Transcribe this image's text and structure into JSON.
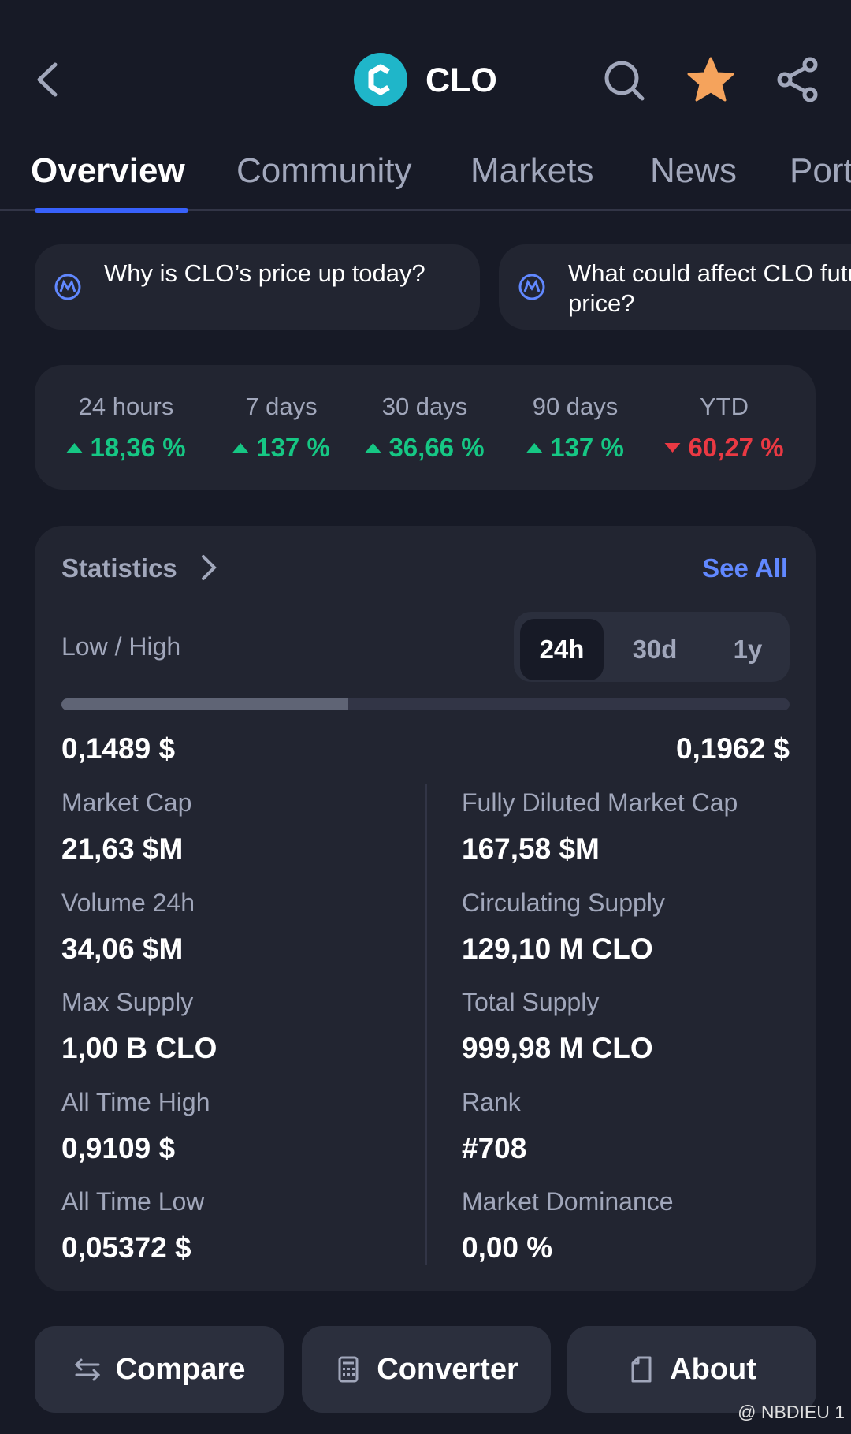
{
  "header": {
    "title": "CLO"
  },
  "tabs": {
    "items": [
      "Overview",
      "Community",
      "Markets",
      "News",
      "Port"
    ],
    "active": 0
  },
  "questions": [
    "Why is CLO’s price up today?",
    "What could affect CLO future price?"
  ],
  "performance": [
    {
      "period": "24 hours",
      "change": "18,36 %",
      "direction": "up"
    },
    {
      "period": "7 days",
      "change": "137 %",
      "direction": "up"
    },
    {
      "period": "30 days",
      "change": "36,66 %",
      "direction": "up"
    },
    {
      "period": "90 days",
      "change": "137 %",
      "direction": "up"
    },
    {
      "period": "YTD",
      "change": "60,27 %",
      "direction": "down"
    }
  ],
  "statistics": {
    "title": "Statistics",
    "see_all": "See All",
    "range_label": "Low / High",
    "ranges": {
      "items": [
        "24h",
        "30d",
        "1y"
      ],
      "active": 0
    },
    "low": "0,1489 $",
    "high": "0,1962 $",
    "left": [
      {
        "label": "Market Cap",
        "value": "21,63 $M"
      },
      {
        "label": "Volume 24h",
        "value": "34,06 $M"
      },
      {
        "label": "Max Supply",
        "value": "1,00 B CLO"
      },
      {
        "label": "All Time High",
        "value": "0,9109 $"
      },
      {
        "label": "All Time Low",
        "value": "0,05372 $"
      }
    ],
    "right": [
      {
        "label": "Fully Diluted Market Cap",
        "value": "167,58 $M"
      },
      {
        "label": "Circulating Supply",
        "value": "129,10 M CLO"
      },
      {
        "label": "Total Supply",
        "value": "999,98 M CLO"
      },
      {
        "label": "Rank",
        "value": "#708"
      },
      {
        "label": "Market Dominance",
        "value": "0,00 %"
      }
    ]
  },
  "buttons": [
    "Compare",
    "Converter",
    "About"
  ],
  "watermark": "@ NBDIEU 1"
}
